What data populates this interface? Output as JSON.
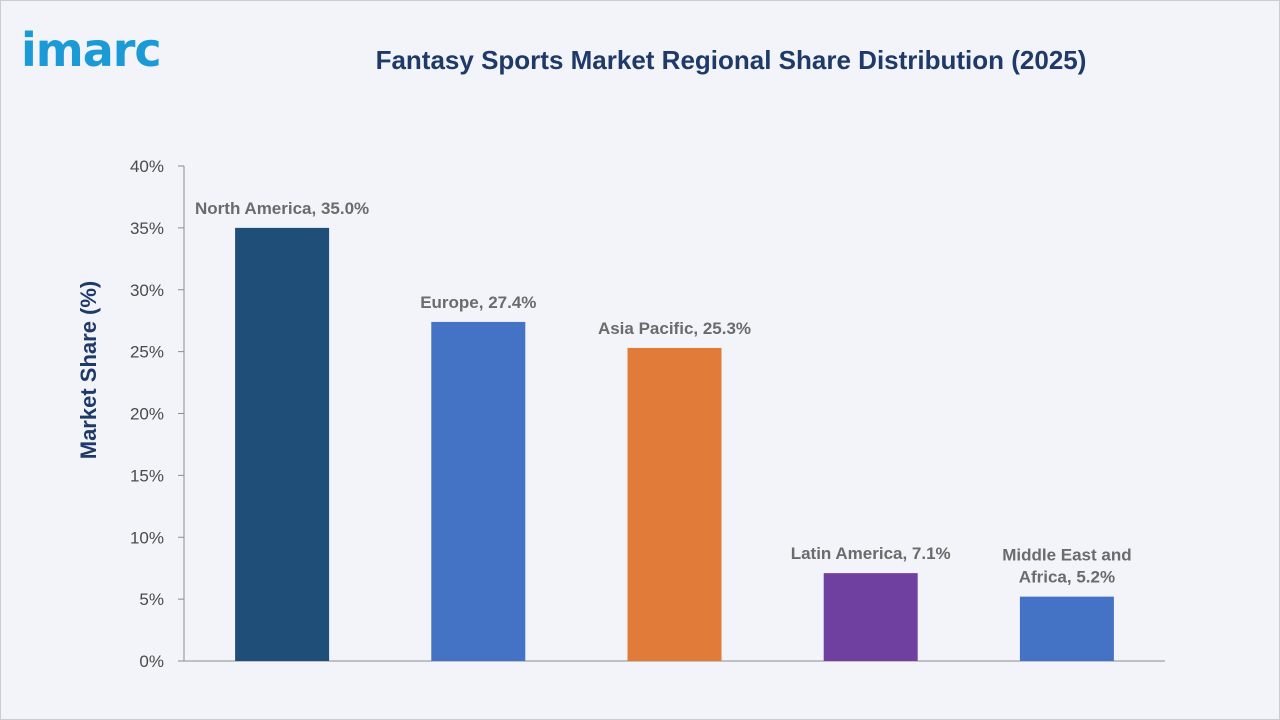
{
  "logo": {
    "text": "imarc"
  },
  "chart_data": {
    "type": "bar",
    "title": "Fantasy Sports Market Regional Share Distribution (2025)",
    "xlabel": "",
    "ylabel": "Market Share (%)",
    "ylim": [
      0,
      40
    ],
    "yticks": [
      "0%",
      "5%",
      "10%",
      "15%",
      "20%",
      "25%",
      "30%",
      "35%",
      "40%"
    ],
    "grid": false,
    "categories": [
      "North America",
      "Europe",
      "Asia Pacific",
      "Latin America",
      "Middle East and Africa"
    ],
    "values": [
      35.0,
      27.4,
      25.3,
      7.1,
      5.2
    ],
    "data_labels": [
      [
        "North America, 35.0%"
      ],
      [
        "Europe, 27.4%"
      ],
      [
        "Asia Pacific, 25.3%"
      ],
      [
        "Latin America, 7.1%"
      ],
      [
        "Middle East and",
        "Africa, 5.2%"
      ]
    ],
    "colors": [
      "#1f4e79",
      "#4472c4",
      "#e07b39",
      "#7040a0",
      "#4472c4"
    ]
  }
}
